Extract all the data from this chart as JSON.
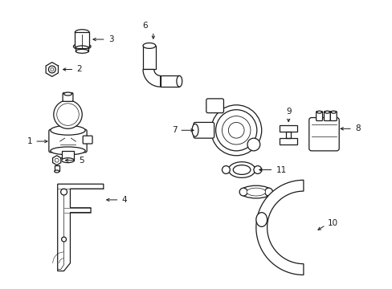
{
  "background_color": "#ffffff",
  "line_color": "#1a1a1a",
  "figsize": [
    4.89,
    3.6
  ],
  "dpi": 100,
  "border_color": "#cccccc"
}
